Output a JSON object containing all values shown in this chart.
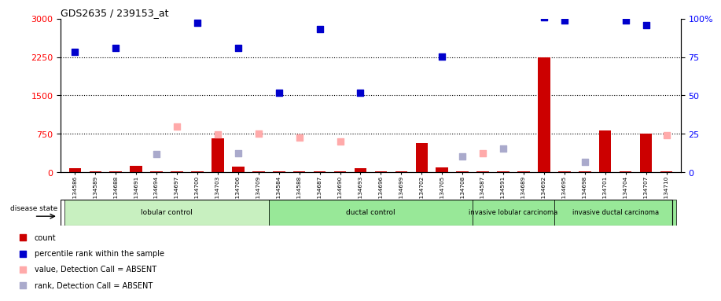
{
  "title": "GDS2635 / 239153_at",
  "samples": [
    "GSM134586",
    "GSM134589",
    "GSM134688",
    "GSM134691",
    "GSM134694",
    "GSM134697",
    "GSM134700",
    "GSM134703",
    "GSM134706",
    "GSM134709",
    "GSM134584",
    "GSM134588",
    "GSM134687",
    "GSM134690",
    "GSM134693",
    "GSM134696",
    "GSM134699",
    "GSM134702",
    "GSM134705",
    "GSM134708",
    "GSM134587",
    "GSM134591",
    "GSM134689",
    "GSM134692",
    "GSM134695",
    "GSM134698",
    "GSM134701",
    "GSM134704",
    "GSM134707",
    "GSM134710"
  ],
  "groups": [
    {
      "label": "lobular control",
      "start": 0,
      "end": 9,
      "color": "#c8f0c0"
    },
    {
      "label": "ductal control",
      "start": 10,
      "end": 19,
      "color": "#98e898"
    },
    {
      "label": "invasive lobular carcinoma",
      "start": 20,
      "end": 23,
      "color": "#98e898"
    },
    {
      "label": "invasive ductal carcinoma",
      "start": 24,
      "end": 29,
      "color": "#98e898"
    }
  ],
  "count_values": [
    80,
    20,
    20,
    130,
    20,
    20,
    20,
    660,
    120,
    20,
    20,
    20,
    20,
    20,
    80,
    20,
    20,
    580,
    100,
    20,
    20,
    20,
    20,
    2250,
    20,
    20,
    820,
    20,
    750,
    20
  ],
  "percentile_values": [
    2350,
    null,
    2420,
    null,
    null,
    null,
    2920,
    null,
    2420,
    null,
    1560,
    null,
    2800,
    null,
    1560,
    null,
    null,
    null,
    2260,
    null,
    null,
    null,
    null,
    3020,
    2960,
    null,
    null,
    2970,
    2870,
    null
  ],
  "absent_value_vals": [
    null,
    null,
    null,
    null,
    null,
    900,
    null,
    740,
    null,
    750,
    null,
    680,
    null,
    610,
    null,
    null,
    null,
    null,
    null,
    null,
    380,
    null,
    null,
    null,
    null,
    null,
    null,
    null,
    null,
    730
  ],
  "absent_rank_vals": [
    null,
    null,
    null,
    null,
    360,
    null,
    null,
    null,
    370,
    null,
    null,
    null,
    null,
    null,
    null,
    null,
    null,
    null,
    null,
    310,
    null,
    460,
    null,
    null,
    null,
    200,
    null,
    null,
    null,
    null
  ],
  "ylim_left": [
    0,
    3000
  ],
  "ylim_right": [
    0,
    100
  ],
  "yticks_left": [
    0,
    750,
    1500,
    2250,
    3000
  ],
  "yticks_right": [
    0,
    25,
    50,
    75,
    100
  ],
  "gridlines": [
    750,
    1500,
    2250
  ],
  "bar_color": "#cc0000",
  "dot_color": "#0000cc",
  "absent_val_color": "#ffaaaa",
  "absent_rank_color": "#aaaacc",
  "bg_color": "#ffffff"
}
